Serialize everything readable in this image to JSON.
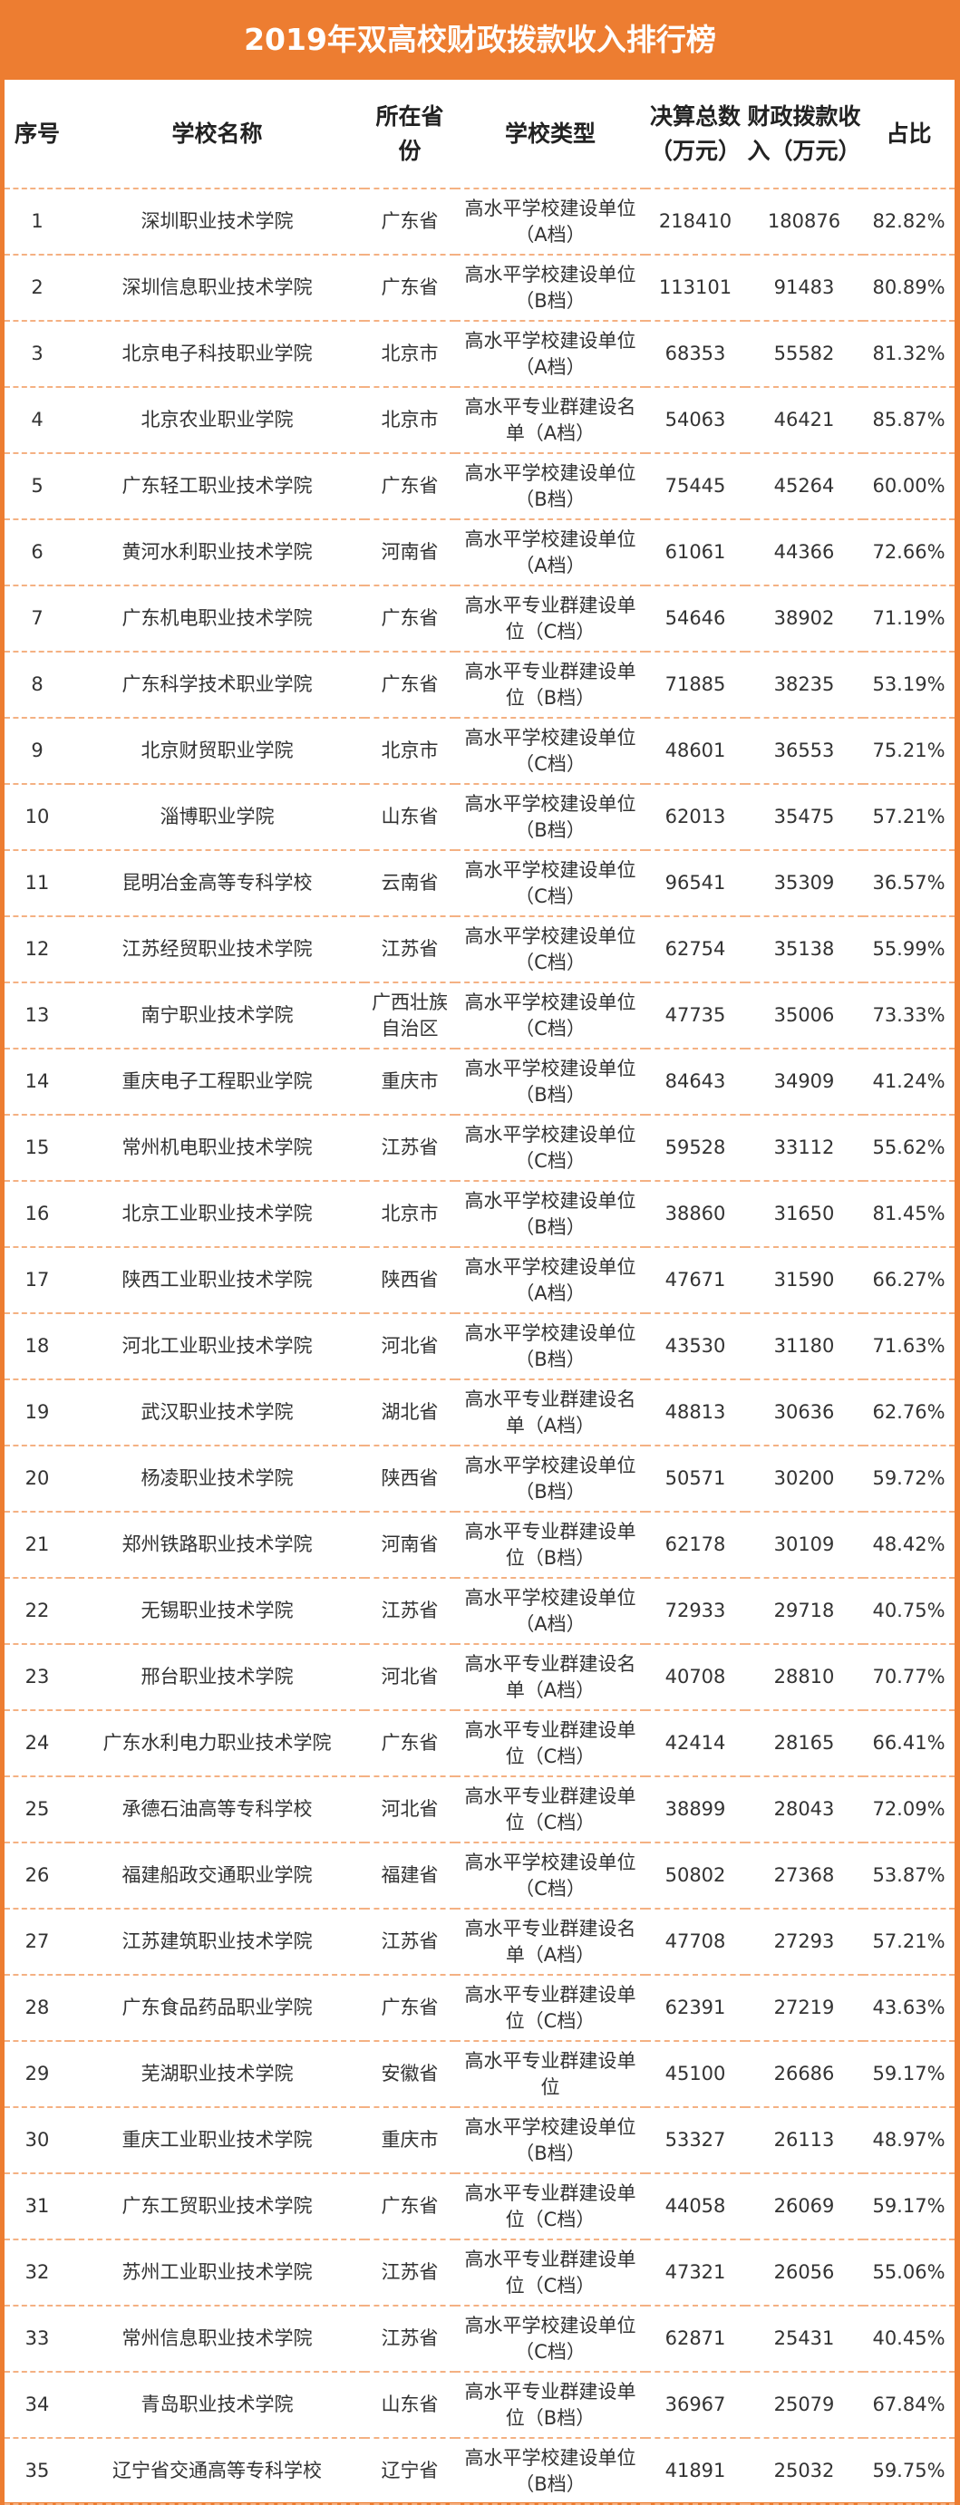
{
  "title": "2019年双高校财政拨款收入排行榜",
  "headers": [
    "序号",
    "学校名称",
    "所在省份",
    "学校类型",
    "决算总数（万元）",
    "财政拨款收入（万元）",
    "占比"
  ],
  "colors": {
    "accent": "#ED7D31",
    "divider": "#F4B183"
  },
  "rows": [
    [
      "1",
      "深圳职业技术学院",
      "广东省",
      "高水平学校建设单位（A档）",
      "218410",
      "180876",
      "82.82%"
    ],
    [
      "2",
      "深圳信息职业技术学院",
      "广东省",
      "高水平学校建设单位（B档）",
      "113101",
      "91483",
      "80.89%"
    ],
    [
      "3",
      "北京电子科技职业学院",
      "北京市",
      "高水平学校建设单位（A档）",
      "68353",
      "55582",
      "81.32%"
    ],
    [
      "4",
      "北京农业职业学院",
      "北京市",
      "高水平专业群建设名单（A档）",
      "54063",
      "46421",
      "85.87%"
    ],
    [
      "5",
      "广东轻工职业技术学院",
      "广东省",
      "高水平学校建设单位（B档）",
      "75445",
      "45264",
      "60.00%"
    ],
    [
      "6",
      "黄河水利职业技术学院",
      "河南省",
      "高水平学校建设单位（A档）",
      "61061",
      "44366",
      "72.66%"
    ],
    [
      "7",
      "广东机电职业技术学院",
      "广东省",
      "高水平专业群建设单位（C档）",
      "54646",
      "38902",
      "71.19%"
    ],
    [
      "8",
      "广东科学技术职业学院",
      "广东省",
      "高水平专业群建设单位（B档）",
      "71885",
      "38235",
      "53.19%"
    ],
    [
      "9",
      "北京财贸职业学院",
      "北京市",
      "高水平学校建设单位（C档）",
      "48601",
      "36553",
      "75.21%"
    ],
    [
      "10",
      "淄博职业学院",
      "山东省",
      "高水平学校建设单位（B档）",
      "62013",
      "35475",
      "57.21%"
    ],
    [
      "11",
      "昆明冶金高等专科学校",
      "云南省",
      "高水平学校建设单位（C档）",
      "96541",
      "35309",
      "36.57%"
    ],
    [
      "12",
      "江苏经贸职业技术学院",
      "江苏省",
      "高水平学校建设单位（C档）",
      "62754",
      "35138",
      "55.99%"
    ],
    [
      "13",
      "南宁职业技术学院",
      "广西壮族自治区",
      "高水平学校建设单位（C档）",
      "47735",
      "35006",
      "73.33%"
    ],
    [
      "14",
      "重庆电子工程职业学院",
      "重庆市",
      "高水平学校建设单位（B档）",
      "84643",
      "34909",
      "41.24%"
    ],
    [
      "15",
      "常州机电职业技术学院",
      "江苏省",
      "高水平学校建设单位（C档）",
      "59528",
      "33112",
      "55.62%"
    ],
    [
      "16",
      "北京工业职业技术学院",
      "北京市",
      "高水平学校建设单位（B档）",
      "38860",
      "31650",
      "81.45%"
    ],
    [
      "17",
      "陕西工业职业技术学院",
      "陕西省",
      "高水平学校建设单位（A档）",
      "47671",
      "31590",
      "66.27%"
    ],
    [
      "18",
      "河北工业职业技术学院",
      "河北省",
      "高水平学校建设单位（B档）",
      "43530",
      "31180",
      "71.63%"
    ],
    [
      "19",
      "武汉职业技术学院",
      "湖北省",
      "高水平专业群建设名单（A档）",
      "48813",
      "30636",
      "62.76%"
    ],
    [
      "20",
      "杨凌职业技术学院",
      "陕西省",
      "高水平学校建设单位（B档）",
      "50571",
      "30200",
      "59.72%"
    ],
    [
      "21",
      "郑州铁路职业技术学院",
      "河南省",
      "高水平专业群建设单位（B档）",
      "62178",
      "30109",
      "48.42%"
    ],
    [
      "22",
      "无锡职业技术学院",
      "江苏省",
      "高水平学校建设单位（A档）",
      "72933",
      "29718",
      "40.75%"
    ],
    [
      "23",
      "邢台职业技术学院",
      "河北省",
      "高水平专业群建设名单（A档）",
      "40708",
      "28810",
      "70.77%"
    ],
    [
      "24",
      "广东水利电力职业技术学院",
      "广东省",
      "高水平专业群建设单位（C档）",
      "42414",
      "28165",
      "66.41%"
    ],
    [
      "25",
      "承德石油高等专科学校",
      "河北省",
      "高水平专业群建设单位（C档）",
      "38899",
      "28043",
      "72.09%"
    ],
    [
      "26",
      "福建船政交通职业学院",
      "福建省",
      "高水平学校建设单位（C档）",
      "50802",
      "27368",
      "53.87%"
    ],
    [
      "27",
      "江苏建筑职业技术学院",
      "江苏省",
      "高水平专业群建设名单（A档）",
      "47708",
      "27293",
      "57.21%"
    ],
    [
      "28",
      "广东食品药品职业学院",
      "广东省",
      "高水平专业群建设单位（C档）",
      "62391",
      "27219",
      "43.63%"
    ],
    [
      "29",
      "芜湖职业技术学院",
      "安徽省",
      "高水平专业群建设单位",
      "45100",
      "26686",
      "59.17%"
    ],
    [
      "30",
      "重庆工业职业技术学院",
      "重庆市",
      "高水平学校建设单位（B档）",
      "53327",
      "26113",
      "48.97%"
    ],
    [
      "31",
      "广东工贸职业技术学院",
      "广东省",
      "高水平专业群建设单位（C档）",
      "44058",
      "26069",
      "59.17%"
    ],
    [
      "32",
      "苏州工业职业技术学院",
      "江苏省",
      "高水平专业群建设单位（C档）",
      "47321",
      "26056",
      "55.06%"
    ],
    [
      "33",
      "常州信息职业技术学院",
      "江苏省",
      "高水平学校建设单位（C档）",
      "62871",
      "25431",
      "40.45%"
    ],
    [
      "34",
      "青岛职业技术学院",
      "山东省",
      "高水平专业群建设单位（B档）",
      "36967",
      "25079",
      "67.84%"
    ],
    [
      "35",
      "辽宁省交通高等专科学校",
      "辽宁省",
      "高水平学校建设单位（B档）",
      "41891",
      "25032",
      "59.75%"
    ]
  ]
}
